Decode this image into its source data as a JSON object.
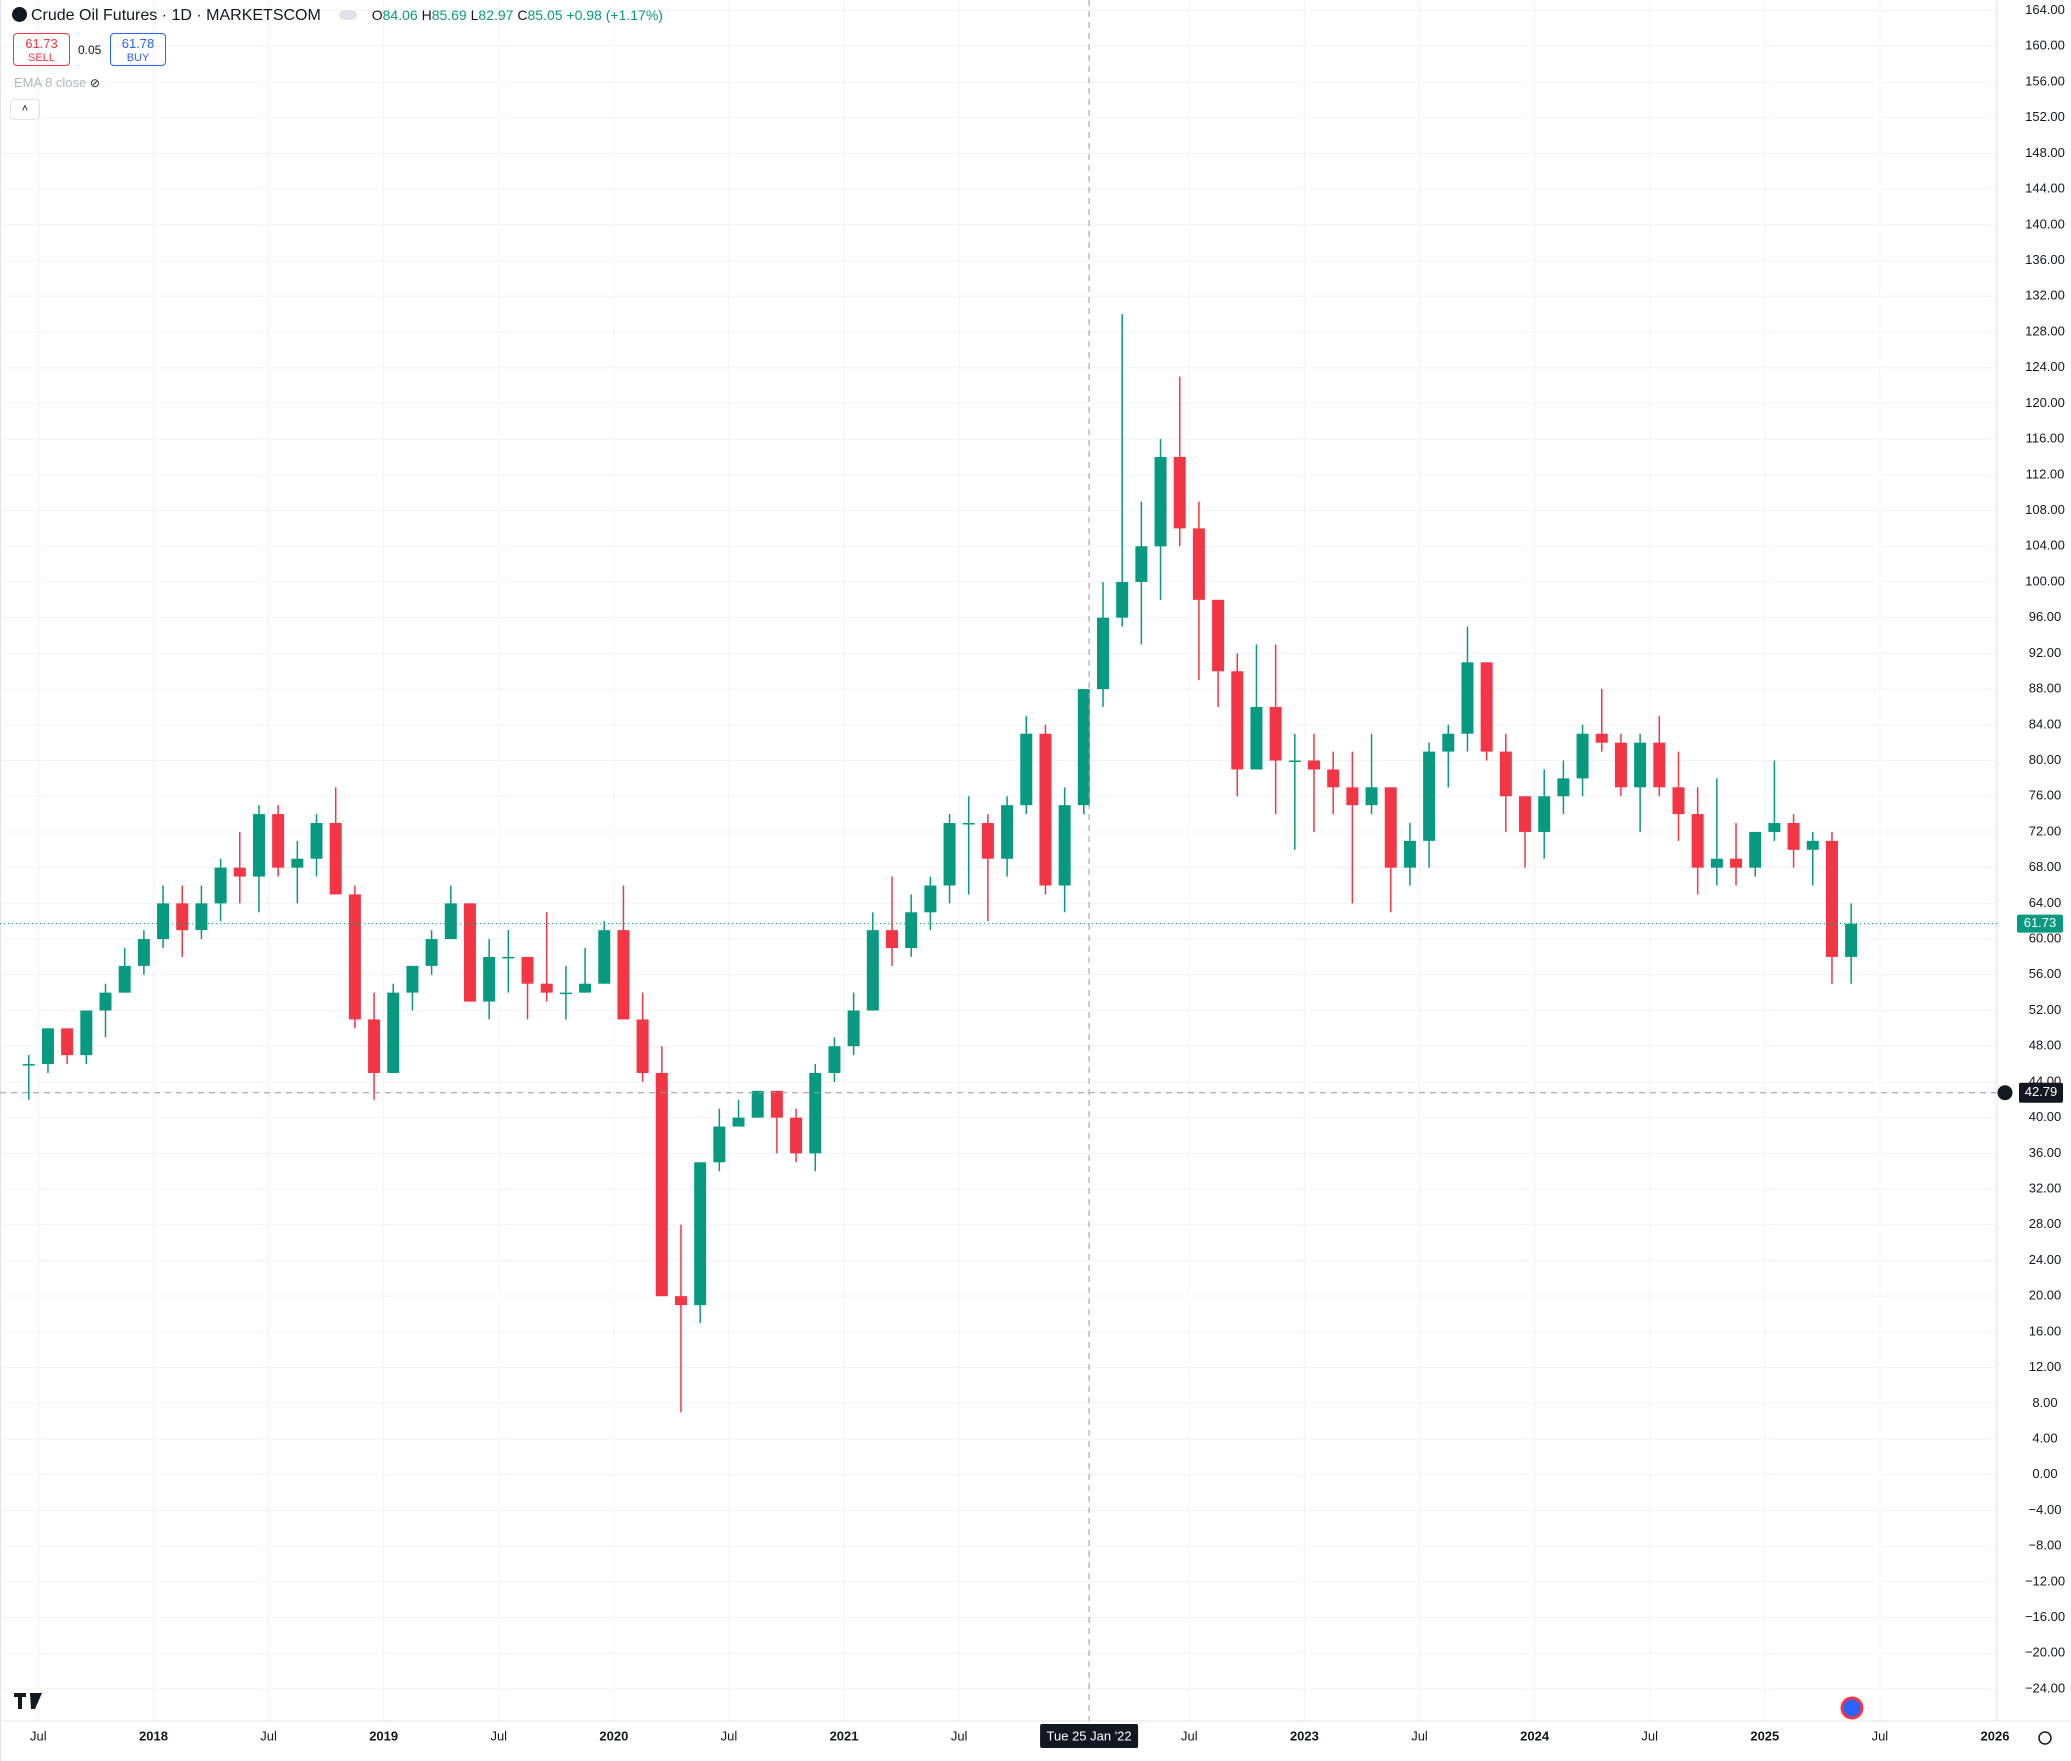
{
  "chart_data": {
    "type": "candlestick",
    "title": "Crude Oil Futures · 1D · MARKETSCOM",
    "ohlc_legend": {
      "o_label": "O",
      "o": 84.06,
      "h_label": "H",
      "h": 85.69,
      "l_label": "L",
      "l": 82.97,
      "c_label": "C",
      "c": 85.05,
      "change": "+0.98",
      "change_pct": "(+1.17%)"
    },
    "sell": {
      "price": 61.73,
      "label": "SELL"
    },
    "spread": 0.05,
    "buy": {
      "price": 61.78,
      "label": "BUY"
    },
    "indicator": "EMA 8 close",
    "last_price": 61.73,
    "crosshair": {
      "price": 42.79,
      "date": "2022-01-25",
      "date_label": "Tue 25 Jan '22"
    },
    "up_color": "#089981",
    "down_color": "#f23645",
    "x": [
      "2017-06",
      "2017-07",
      "2017-08",
      "2017-09",
      "2017-10",
      "2017-11",
      "2017-12",
      "2018-01",
      "2018-02",
      "2018-03",
      "2018-04",
      "2018-05",
      "2018-06",
      "2018-07",
      "2018-08",
      "2018-09",
      "2018-10",
      "2018-11",
      "2018-12",
      "2019-01",
      "2019-02",
      "2019-03",
      "2019-04",
      "2019-05",
      "2019-06",
      "2019-07",
      "2019-08",
      "2019-09",
      "2019-10",
      "2019-11",
      "2019-12",
      "2020-01",
      "2020-02",
      "2020-03",
      "2020-04",
      "2020-05",
      "2020-06",
      "2020-07",
      "2020-08",
      "2020-09",
      "2020-10",
      "2020-11",
      "2020-12",
      "2021-01",
      "2021-02",
      "2021-03",
      "2021-04",
      "2021-05",
      "2021-06",
      "2021-07",
      "2021-08",
      "2021-09",
      "2021-10",
      "2021-11",
      "2021-12",
      "2022-01",
      "2022-02",
      "2022-03",
      "2022-04",
      "2022-05",
      "2022-06",
      "2022-07",
      "2022-08",
      "2022-09",
      "2022-10",
      "2022-11",
      "2022-12",
      "2023-01",
      "2023-02",
      "2023-03",
      "2023-04",
      "2023-05",
      "2023-06",
      "2023-07",
      "2023-08",
      "2023-09",
      "2023-10",
      "2023-11",
      "2023-12",
      "2024-01",
      "2024-02",
      "2024-03",
      "2024-04",
      "2024-05",
      "2024-06",
      "2024-07",
      "2024-08",
      "2024-09",
      "2024-10",
      "2024-11",
      "2024-12",
      "2025-01",
      "2025-02",
      "2025-03",
      "2025-04",
      "2025-05"
    ],
    "open": [
      46,
      46,
      50,
      47,
      52,
      54,
      57,
      60,
      64,
      61,
      64,
      68,
      67,
      74,
      68,
      69,
      73,
      65,
      51,
      45,
      54,
      57,
      60,
      64,
      53,
      58,
      58,
      55,
      54,
      54,
      55,
      61,
      51,
      45,
      20,
      19,
      35,
      39,
      40,
      43,
      40,
      36,
      45,
      48,
      52,
      61,
      59,
      63,
      66,
      73,
      73,
      69,
      75,
      83,
      66,
      75,
      88,
      96,
      100,
      104,
      114,
      106,
      98,
      90,
      79,
      86,
      80,
      80,
      79,
      77,
      75,
      77,
      68,
      71,
      81,
      83,
      91,
      81,
      76,
      72,
      76,
      78,
      83,
      82,
      77,
      82,
      77,
      74,
      68,
      69,
      68,
      72,
      73,
      70,
      71,
      58
    ],
    "high": [
      47,
      50,
      50,
      52,
      55,
      59,
      61,
      66,
      66,
      66,
      69,
      72,
      75,
      75,
      71,
      74,
      77,
      66,
      54,
      55,
      57,
      61,
      66,
      64,
      60,
      61,
      58,
      63,
      57,
      59,
      62,
      66,
      54,
      48,
      28,
      35,
      41,
      42,
      43,
      43,
      41,
      46,
      49,
      54,
      63,
      67,
      65,
      67,
      74,
      76,
      74,
      76,
      85,
      84,
      77,
      88,
      100,
      130,
      109,
      116,
      123,
      109,
      98,
      92,
      93,
      93,
      83,
      83,
      81,
      81,
      83,
      77,
      73,
      82,
      84,
      95,
      91,
      83,
      76,
      79,
      80,
      84,
      88,
      83,
      83,
      85,
      81,
      77,
      78,
      73,
      72,
      80,
      74,
      72,
      72,
      64
    ],
    "low": [
      42,
      45,
      46,
      46,
      49,
      54,
      56,
      59,
      58,
      60,
      62,
      64,
      63,
      67,
      64,
      67,
      65,
      50,
      42,
      45,
      52,
      56,
      60,
      53,
      51,
      54,
      51,
      53,
      51,
      54,
      55,
      51,
      44,
      20,
      7,
      17,
      34,
      39,
      40,
      36,
      35,
      34,
      44,
      47,
      52,
      57,
      58,
      61,
      64,
      65,
      62,
      67,
      74,
      65,
      63,
      74,
      86,
      95,
      93,
      98,
      104,
      89,
      86,
      76,
      79,
      74,
      70,
      72,
      74,
      64,
      74,
      63,
      66,
      68,
      77,
      81,
      80,
      72,
      68,
      69,
      74,
      76,
      81,
      76,
      72,
      76,
      71,
      65,
      66,
      66,
      67,
      71,
      68,
      66,
      55,
      55
    ],
    "close": [
      46,
      50,
      47,
      52,
      54,
      57,
      60,
      64,
      61,
      64,
      68,
      67,
      74,
      68,
      69,
      73,
      65,
      51,
      45,
      54,
      57,
      60,
      64,
      53,
      58,
      58,
      55,
      54,
      54,
      55,
      61,
      51,
      45,
      20,
      19,
      35,
      39,
      40,
      43,
      40,
      36,
      45,
      48,
      52,
      61,
      59,
      63,
      66,
      73,
      73,
      69,
      75,
      83,
      66,
      75,
      88,
      96,
      100,
      104,
      114,
      106,
      98,
      90,
      79,
      86,
      80,
      80,
      79,
      77,
      75,
      77,
      68,
      71,
      81,
      83,
      91,
      81,
      76,
      72,
      76,
      78,
      83,
      82,
      77,
      82,
      77,
      74,
      68,
      69,
      68,
      72,
      73,
      70,
      71,
      58,
      61.73
    ],
    "xlim": [
      "2017-05",
      "2026-01"
    ],
    "xticks": [
      {
        "value": "2017-07",
        "label": "Jul"
      },
      {
        "value": "2018-01",
        "label": "2018"
      },
      {
        "value": "2018-07",
        "label": "Jul"
      },
      {
        "value": "2019-01",
        "label": "2019"
      },
      {
        "value": "2019-07",
        "label": "Jul"
      },
      {
        "value": "2020-01",
        "label": "2020"
      },
      {
        "value": "2020-07",
        "label": "Jul"
      },
      {
        "value": "2021-01",
        "label": "2021"
      },
      {
        "value": "2021-07",
        "label": "Jul"
      },
      {
        "value": "2022-07",
        "label": "Jul"
      },
      {
        "value": "2023-01",
        "label": "2023"
      },
      {
        "value": "2023-07",
        "label": "Jul"
      },
      {
        "value": "2024-01",
        "label": "2024"
      },
      {
        "value": "2024-07",
        "label": "Jul"
      },
      {
        "value": "2025-01",
        "label": "2025"
      },
      {
        "value": "2025-07",
        "label": "Jul"
      },
      {
        "value": "2026-01",
        "label": "2026"
      }
    ],
    "ylim": [
      -25.6,
      165.6
    ],
    "yticks": [
      {
        "value": 164,
        "label": "164.00"
      },
      {
        "value": 160,
        "label": "160.00"
      },
      {
        "value": 156,
        "label": "156.00"
      },
      {
        "value": 152,
        "label": "152.00"
      },
      {
        "value": 148,
        "label": "148.00"
      },
      {
        "value": 144,
        "label": "144.00"
      },
      {
        "value": 140,
        "label": "140.00"
      },
      {
        "value": 136,
        "label": "136.00"
      },
      {
        "value": 132,
        "label": "132.00"
      },
      {
        "value": 128,
        "label": "128.00"
      },
      {
        "value": 124,
        "label": "124.00"
      },
      {
        "value": 120,
        "label": "120.00"
      },
      {
        "value": 116,
        "label": "116.00"
      },
      {
        "value": 112,
        "label": "112.00"
      },
      {
        "value": 108,
        "label": "108.00"
      },
      {
        "value": 104,
        "label": "104.00"
      },
      {
        "value": 100,
        "label": "100.00"
      },
      {
        "value": 96,
        "label": "96.00"
      },
      {
        "value": 92,
        "label": "92.00"
      },
      {
        "value": 88,
        "label": "88.00"
      },
      {
        "value": 84,
        "label": "84.00"
      },
      {
        "value": 80,
        "label": "80.00"
      },
      {
        "value": 76,
        "label": "76.00"
      },
      {
        "value": 72,
        "label": "72.00"
      },
      {
        "value": 68,
        "label": "68.00"
      },
      {
        "value": 64,
        "label": "64.00"
      },
      {
        "value": 60,
        "label": "60.00"
      },
      {
        "value": 56,
        "label": "56.00"
      },
      {
        "value": 52,
        "label": "52.00"
      },
      {
        "value": 48,
        "label": "48.00"
      },
      {
        "value": 44,
        "label": "44.00"
      },
      {
        "value": 40,
        "label": "40.00"
      },
      {
        "value": 36,
        "label": "36.00"
      },
      {
        "value": 32,
        "label": "32.00"
      },
      {
        "value": 28,
        "label": "28.00"
      },
      {
        "value": 24,
        "label": "24.00"
      },
      {
        "value": 20,
        "label": "20.00"
      },
      {
        "value": 16,
        "label": "16.00"
      },
      {
        "value": 12,
        "label": "12.00"
      },
      {
        "value": 8,
        "label": "8.00"
      },
      {
        "value": 4,
        "label": "4.00"
      },
      {
        "value": 0,
        "label": "0.00"
      },
      {
        "value": -4,
        "label": "−4.00"
      },
      {
        "value": -8,
        "label": "−8.00"
      },
      {
        "value": -12,
        "label": "−12.00"
      },
      {
        "value": -16,
        "label": "−16.00"
      },
      {
        "value": -20,
        "label": "−20.00"
      },
      {
        "value": -24,
        "label": "−24.00"
      }
    ],
    "grid": true
  }
}
